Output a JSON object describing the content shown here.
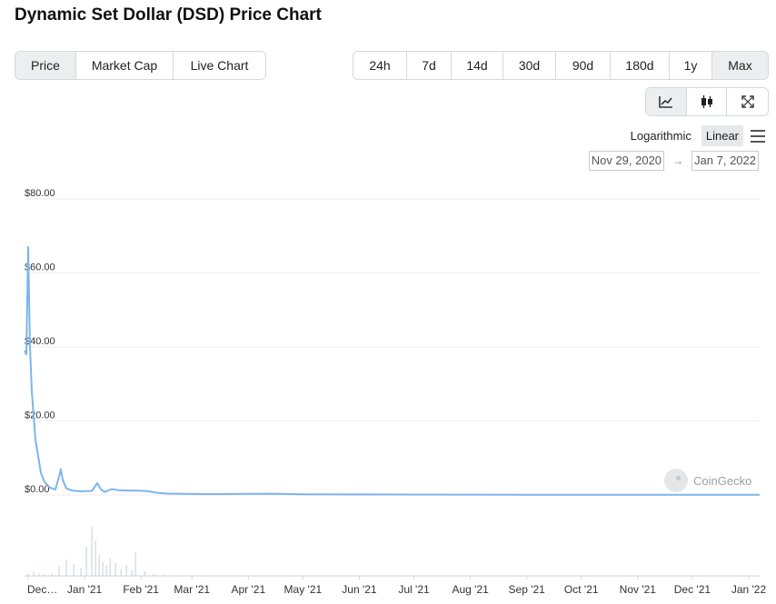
{
  "title": "Dynamic Set Dollar (DSD) Price Chart",
  "tabs": [
    "Price",
    "Market Cap",
    "Live Chart"
  ],
  "active_tab": "Price",
  "ranges": [
    "24h",
    "7d",
    "14d",
    "30d",
    "90d",
    "180d",
    "1y",
    "Max"
  ],
  "active_range": "Max",
  "view_icons": [
    "line-chart-icon",
    "candlestick-icon",
    "fullscreen-icon"
  ],
  "scale": {
    "log_label": "Logarithmic",
    "linear_label": "Linear",
    "active": "Linear"
  },
  "date_range": {
    "from": "Nov 29, 2020",
    "arrow": "→",
    "to": "Jan 7, 2022"
  },
  "watermark": "CoinGecko",
  "colors": {
    "line": "#7cb5ec",
    "volume": "#c9cdd2",
    "grid": "#eeeeee",
    "active_button": "#eceef0"
  },
  "chart_data": {
    "type": "line",
    "y_ticks": [
      "$80.00",
      "$60.00",
      "$40.00",
      "$20.00",
      "$0.00"
    ],
    "y_tick_values": [
      80,
      60,
      40,
      20,
      0
    ],
    "ylim": [
      0,
      80
    ],
    "x_ticks": [
      "Dec…",
      "Jan '21",
      "Feb '21",
      "Mar '21",
      "Apr '21",
      "May '21",
      "Jun '21",
      "Jul '21",
      "Aug '21",
      "Sep '21",
      "Oct '21",
      "Nov '21",
      "Dec '21",
      "Jan '22"
    ],
    "x_tick_dates": [
      "2020-12-01",
      "2021-01-01",
      "2021-02-01",
      "2021-03-01",
      "2021-04-01",
      "2021-05-01",
      "2021-06-01",
      "2021-07-01",
      "2021-08-01",
      "2021-09-01",
      "2021-10-01",
      "2021-11-01",
      "2021-12-01",
      "2022-01-01"
    ],
    "xlim": [
      "2020-11-29",
      "2022-01-07"
    ],
    "series": [
      {
        "x": [
          "2020-11-29",
          "2020-11-30",
          "2020-12-01",
          "2020-12-02",
          "2020-12-03",
          "2020-12-05",
          "2020-12-08",
          "2020-12-10",
          "2020-12-13",
          "2020-12-16",
          "2020-12-18",
          "2020-12-19",
          "2020-12-20",
          "2020-12-22",
          "2020-12-25",
          "2020-12-30",
          "2021-01-05",
          "2021-01-08",
          "2021-01-10",
          "2021-01-12",
          "2021-01-16",
          "2021-01-20",
          "2021-01-25",
          "2021-01-30",
          "2021-02-05",
          "2021-02-10",
          "2021-02-15",
          "2021-02-25",
          "2021-03-10",
          "2021-04-01",
          "2021-04-15",
          "2021-05-01",
          "2021-06-01",
          "2021-07-01",
          "2021-08-01",
          "2021-09-01",
          "2021-10-01",
          "2021-11-01",
          "2021-12-01",
          "2022-01-07"
        ],
        "values": [
          39,
          38,
          67,
          40,
          28,
          15,
          6,
          3.5,
          2,
          1.5,
          5,
          7,
          4,
          1.8,
          1.2,
          1.0,
          1.1,
          3.2,
          1.5,
          0.8,
          1.6,
          1.3,
          1.2,
          1.2,
          1.0,
          0.6,
          0.4,
          0.3,
          0.25,
          0.3,
          0.35,
          0.2,
          0.15,
          0.12,
          0.1,
          0.08,
          0.07,
          0.06,
          0.05,
          0.05
        ]
      }
    ],
    "volume": {
      "x": [
        "2020-12-01",
        "2020-12-04",
        "2020-12-07",
        "2020-12-10",
        "2020-12-14",
        "2020-12-18",
        "2020-12-22",
        "2020-12-26",
        "2020-12-30",
        "2021-01-02",
        "2021-01-05",
        "2021-01-07",
        "2021-01-09",
        "2021-01-11",
        "2021-01-13",
        "2021-01-15",
        "2021-01-18",
        "2021-01-21",
        "2021-01-24",
        "2021-01-27",
        "2021-01-29",
        "2021-02-03",
        "2021-02-08",
        "2021-02-14"
      ],
      "values": [
        2,
        3,
        2,
        1.5,
        2,
        8,
        14,
        10,
        7,
        25,
        42,
        30,
        18,
        12,
        9,
        15,
        11,
        6,
        9,
        5,
        20,
        4,
        2,
        1
      ]
    }
  }
}
